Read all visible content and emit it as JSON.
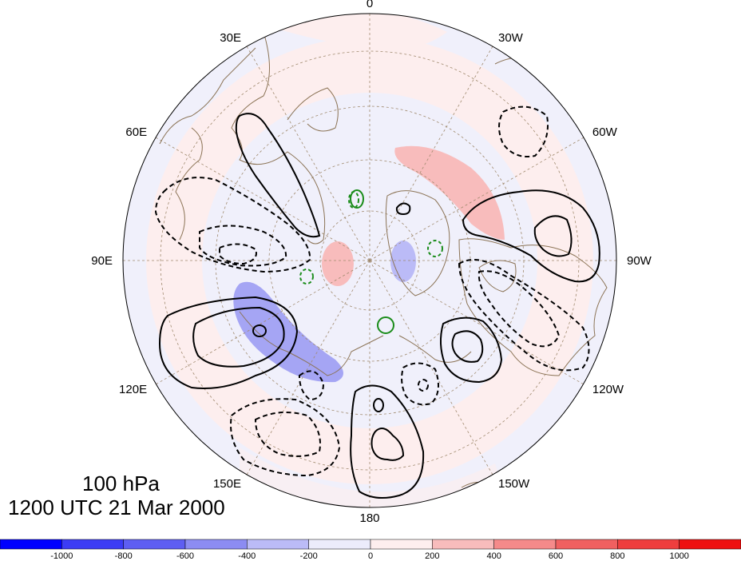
{
  "map": {
    "projection": "north-polar-stereographic",
    "longitude_labels": [
      {
        "text": "0",
        "lon": 0
      },
      {
        "text": "30W",
        "lon": -30
      },
      {
        "text": "60W",
        "lon": -60
      },
      {
        "text": "90W",
        "lon": -90
      },
      {
        "text": "120W",
        "lon": -120
      },
      {
        "text": "150W",
        "lon": -150
      },
      {
        "text": "180",
        "lon": 180
      },
      {
        "text": "150E",
        "lon": 150
      },
      {
        "text": "120E",
        "lon": 120
      },
      {
        "text": "90E",
        "lon": 90
      },
      {
        "text": "60E",
        "lon": 60
      },
      {
        "text": "30E",
        "lon": 30
      }
    ],
    "colors": {
      "coastline": "#8b7355",
      "graticule": "#a08a6e",
      "positive_contour": "#000000",
      "negative_contour": "#000000",
      "green_contour": "#1a8c1a"
    }
  },
  "caption": {
    "level": "100 hPa",
    "time": "1200 UTC 21 Mar 2000"
  },
  "colorbar": {
    "ticks": [
      "-1000",
      "-800",
      "-600",
      "-400",
      "-200",
      "0",
      "200",
      "400",
      "600",
      "800",
      "1000"
    ],
    "colors": [
      "#0000ff",
      "#3c3cf5",
      "#5e5ef2",
      "#8c8cf2",
      "#bbbbf7",
      "#ececfb",
      "#fdeeee",
      "#f8bcbc",
      "#f58a8a",
      "#f06060",
      "#ee3e3e",
      "#ee1111"
    ]
  }
}
